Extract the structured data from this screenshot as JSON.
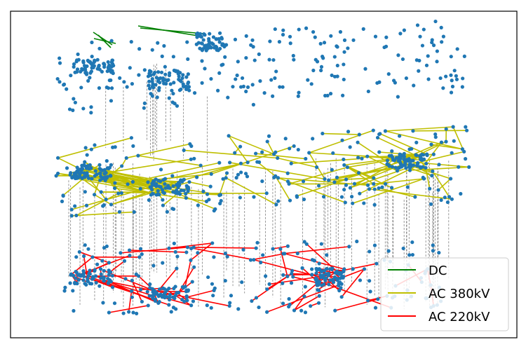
{
  "chart_data": {
    "type": "scatter",
    "title": "",
    "xlabel": "",
    "ylabel": "",
    "grid": false,
    "axes_visible": false,
    "legend": {
      "placement": "lower-right",
      "entries": [
        {
          "label": "DC",
          "color": "#008000"
        },
        {
          "label": "AC 380kV",
          "color": "#bfbf00"
        },
        {
          "label": "AC 220kV",
          "color": "#ff0000"
        }
      ]
    },
    "colors": {
      "node": "#1f77b4",
      "vertical_link": "#808080",
      "dc": "#008000",
      "ac380": "#bfbf00",
      "ac220": "#ff0000"
    },
    "layers": [
      {
        "series": "DC",
        "nodes": "approximately 380 nodes, dashed vertical links to the layer below"
      },
      {
        "series": "AC 380kV",
        "nodes": "approximately 420 nodes"
      },
      {
        "series": "AC 220kV",
        "nodes": "approximately 360 nodes, dashed vertical links to the layer above"
      }
    ]
  }
}
